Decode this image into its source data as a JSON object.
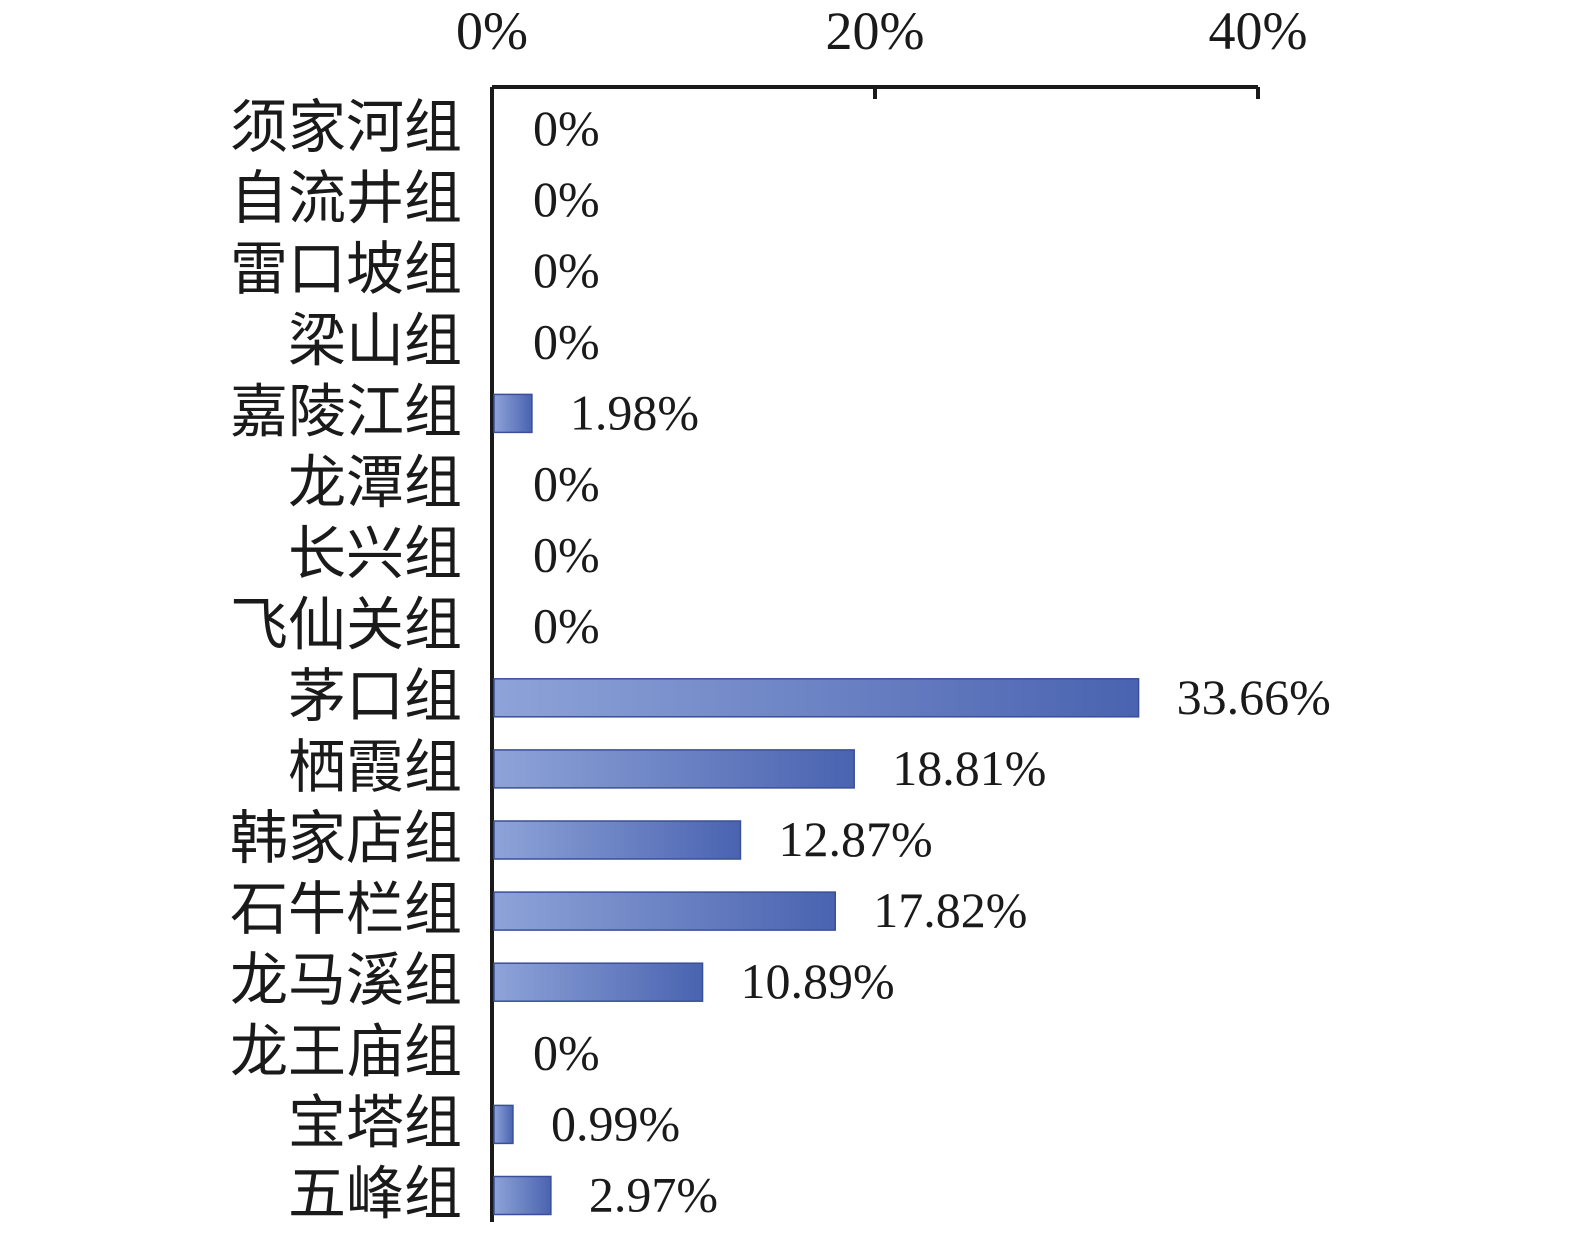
{
  "chart_data": {
    "type": "bar",
    "orientation": "horizontal",
    "categories": [
      "须家河组",
      "自流井组",
      "雷口坡组",
      "梁山组",
      "嘉陵江组",
      "龙潭组",
      "长兴组",
      "飞仙关组",
      "茅口组",
      "栖霞组",
      "韩家店组",
      "石牛栏组",
      "龙马溪组",
      "龙王庙组",
      "宝塔组",
      "五峰组"
    ],
    "values": [
      0,
      0,
      0,
      0,
      1.98,
      0,
      0,
      0,
      33.66,
      18.81,
      12.87,
      17.82,
      10.89,
      0,
      0.99,
      2.97
    ],
    "data_labels": [
      "0%",
      "0%",
      "0%",
      "0%",
      "1.98%",
      "0%",
      "0%",
      "0%",
      "33.66%",
      "18.81%",
      "12.87%",
      "17.82%",
      "10.89%",
      "0%",
      "0.99%",
      "2.97%"
    ],
    "x_ticks": [
      0,
      20,
      40
    ],
    "x_tick_labels": [
      "0%",
      "20%",
      "40%"
    ],
    "xlim": [
      0,
      40
    ],
    "x_axis_position": "top",
    "grid": false,
    "legend": "none",
    "colors": {
      "bar_light": "#8ea3d8",
      "bar_dark": "#4a63b0",
      "bar_edge": "#3a4f99"
    }
  }
}
